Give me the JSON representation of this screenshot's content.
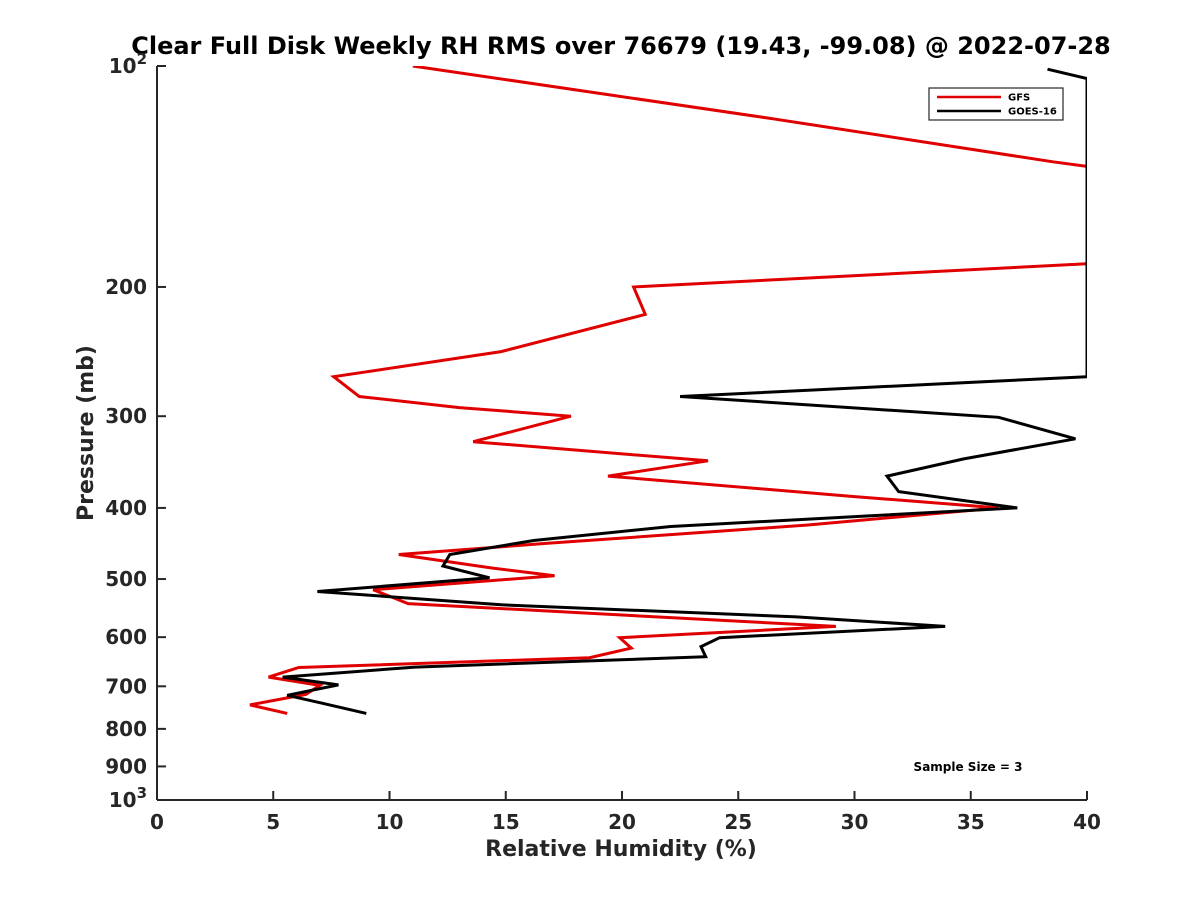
{
  "chart_data": {
    "type": "line",
    "title": "Clear Full Disk Weekly RH RMS over 76679 (19.43, -99.08) @ 2022-07-28",
    "xlabel": "Relative Humidity (%)",
    "ylabel": "Pressure (mb)",
    "xlim": [
      0,
      40
    ],
    "ylim": [
      100,
      1000
    ],
    "y_scale": "log",
    "y_reversed": true,
    "grid": false,
    "legend_position": "top-right",
    "x_ticks": [
      "0",
      "5",
      "10",
      "15",
      "20",
      "25",
      "30",
      "35",
      "40"
    ],
    "y_ticks": [
      {
        "value": 100,
        "base": "10",
        "exp": "2"
      },
      {
        "value": 200,
        "label": "200"
      },
      {
        "value": 300,
        "label": "300"
      },
      {
        "value": 400,
        "label": "400"
      },
      {
        "value": 500,
        "label": "500"
      },
      {
        "value": 600,
        "label": "600"
      },
      {
        "value": 700,
        "label": "700"
      },
      {
        "value": 800,
        "label": "800"
      },
      {
        "value": 900,
        "label": "900"
      },
      {
        "value": 1000,
        "base": "10",
        "exp": "3"
      }
    ],
    "series": [
      {
        "name": "GFS",
        "color": "#e00000",
        "points": [
          [
            11.0,
            100
          ],
          [
            26.5,
            118
          ],
          [
            38.5,
            135
          ],
          [
            40.0,
            137
          ],
          [
            40.0,
            186
          ],
          [
            20.5,
            200
          ],
          [
            21.0,
            218
          ],
          [
            14.8,
            245
          ],
          [
            7.6,
            265
          ],
          [
            8.7,
            282
          ],
          [
            13.0,
            292
          ],
          [
            17.8,
            300
          ],
          [
            13.6,
            325
          ],
          [
            23.7,
            345
          ],
          [
            19.4,
            362
          ],
          [
            30.0,
            386
          ],
          [
            36.2,
            400
          ],
          [
            28.0,
            422
          ],
          [
            16.8,
            447
          ],
          [
            10.4,
            463
          ],
          [
            14.4,
            483
          ],
          [
            17.1,
            495
          ],
          [
            9.3,
            517
          ],
          [
            10.8,
            540
          ],
          [
            29.2,
            580
          ],
          [
            19.9,
            601
          ],
          [
            20.4,
            621
          ],
          [
            18.6,
            640
          ],
          [
            6.1,
            660
          ],
          [
            4.8,
            680
          ],
          [
            7.0,
            698
          ],
          [
            6.4,
            718
          ],
          [
            4.0,
            742
          ],
          [
            5.6,
            762
          ]
        ]
      },
      {
        "name": "GOES-16",
        "color": "#000000",
        "points": [
          [
            38.3,
            101
          ],
          [
            40.0,
            104
          ],
          [
            40.0,
            265
          ],
          [
            22.5,
            282
          ],
          [
            36.2,
            301
          ],
          [
            39.5,
            322
          ],
          [
            34.7,
            343
          ],
          [
            31.4,
            362
          ],
          [
            31.9,
            380
          ],
          [
            37.0,
            400
          ],
          [
            22.1,
            424
          ],
          [
            16.2,
            443
          ],
          [
            12.6,
            463
          ],
          [
            12.3,
            480
          ],
          [
            14.3,
            498
          ],
          [
            6.9,
            520
          ],
          [
            14.8,
            542
          ],
          [
            27.5,
            563
          ],
          [
            33.9,
            580
          ],
          [
            24.2,
            601
          ],
          [
            23.4,
            618
          ],
          [
            23.6,
            638
          ],
          [
            11.1,
            659
          ],
          [
            5.4,
            680
          ],
          [
            7.8,
            697
          ],
          [
            5.6,
            720
          ],
          [
            7.1,
            738
          ],
          [
            9.0,
            762
          ]
        ]
      }
    ],
    "annotations": [
      "Sample Size = 3"
    ]
  }
}
